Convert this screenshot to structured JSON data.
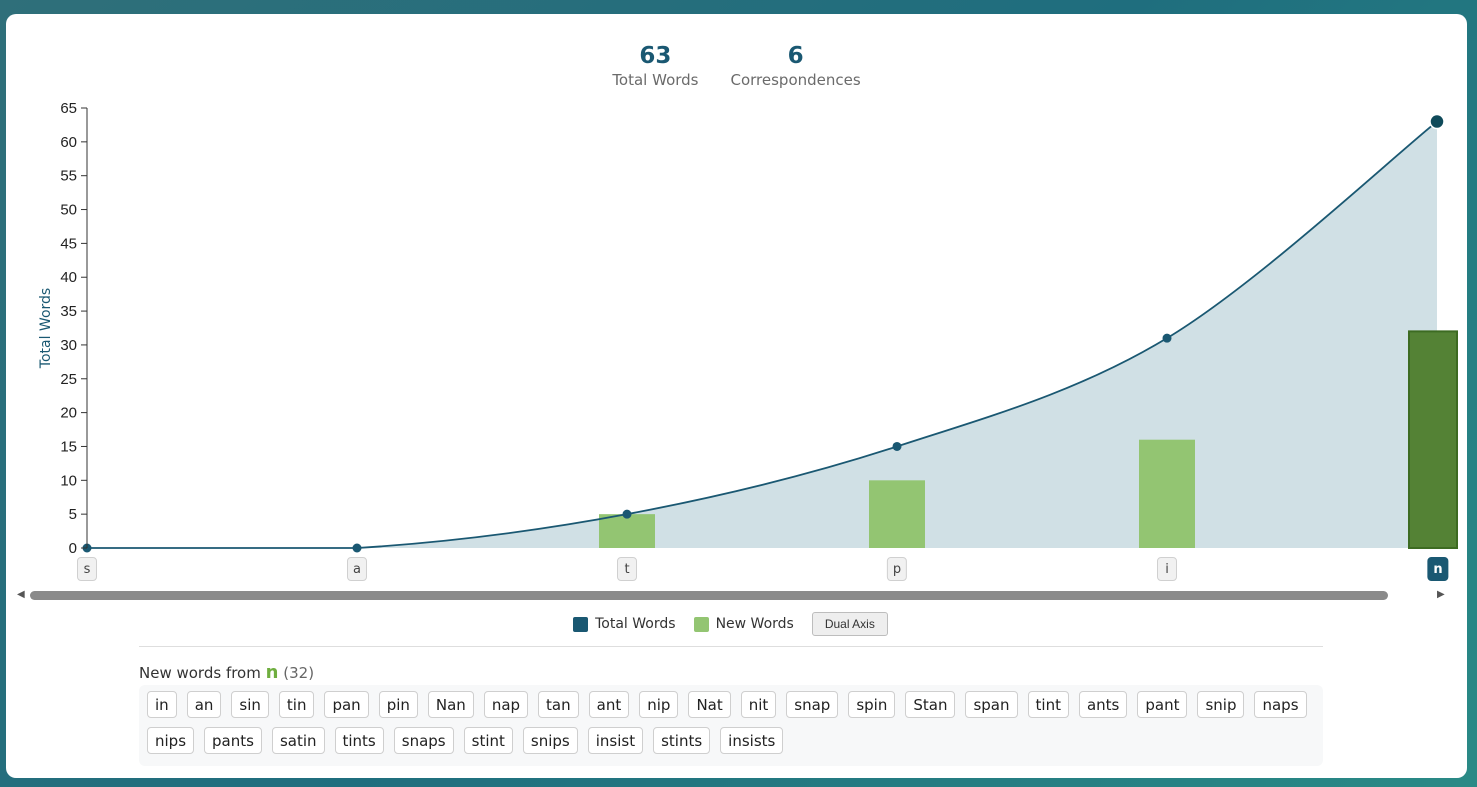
{
  "stats": {
    "total_words_value": "63",
    "total_words_label": "Total Words",
    "correspondences_value": "6",
    "correspondences_label": "Correspondences"
  },
  "chart_data": {
    "type": "line",
    "categories": [
      "s",
      "a",
      "t",
      "p",
      "i",
      "n"
    ],
    "active_category": "n",
    "series": [
      {
        "name": "Total Words",
        "type": "area-line",
        "values": [
          0,
          0,
          5,
          15,
          31,
          63
        ],
        "color": "#1a5872"
      },
      {
        "name": "New Words",
        "type": "bar",
        "values": [
          0,
          0,
          5,
          10,
          16,
          32
        ],
        "color": "#93c572",
        "active_color": "#548235"
      }
    ],
    "ylabel": "Total Words",
    "ylim": [
      0,
      65
    ],
    "yticks": [
      0,
      5,
      10,
      15,
      20,
      25,
      30,
      35,
      40,
      45,
      50,
      55,
      60,
      65
    ],
    "area_fill": "#d0e0e5",
    "legend_placement": "bottom"
  },
  "legend": {
    "total_label": "Total Words",
    "new_label": "New Words",
    "dual_axis_label": "Dual Axis"
  },
  "new_words": {
    "title_prefix": "New words from",
    "letter": "n",
    "count": "(32)",
    "words": [
      "in",
      "an",
      "sin",
      "tin",
      "pan",
      "pin",
      "Nan",
      "nap",
      "tan",
      "ant",
      "nip",
      "Nat",
      "nit",
      "snap",
      "spin",
      "Stan",
      "span",
      "tint",
      "ants",
      "pant",
      "snip",
      "naps",
      "nips",
      "pants",
      "satin",
      "tints",
      "snaps",
      "stint",
      "snips",
      "insist",
      "stints",
      "insists"
    ]
  }
}
